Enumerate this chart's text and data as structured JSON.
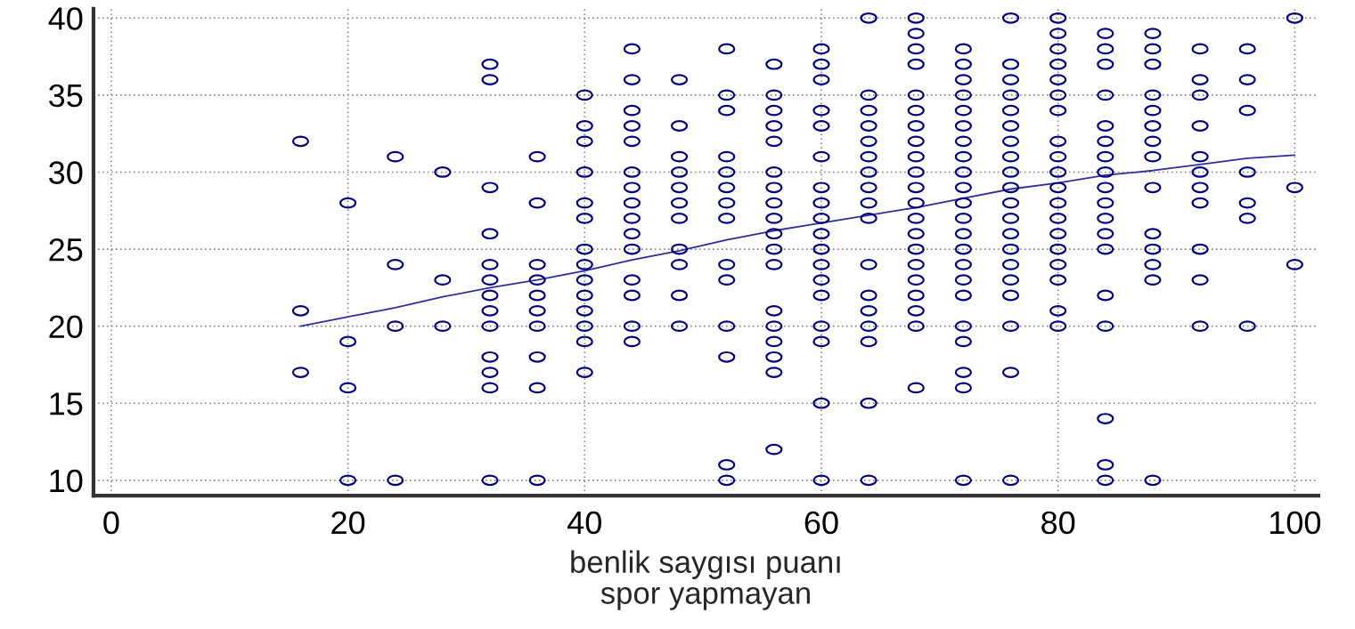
{
  "chart_data": {
    "type": "scatter",
    "xlabel": "benlik saygısı puanı\nspor yapmayan",
    "xlim": [
      -1.5,
      102
    ],
    "ylim": [
      9,
      40.6
    ],
    "xticks": [
      0,
      20,
      40,
      60,
      80,
      100
    ],
    "yticks": [
      10,
      15,
      20,
      25,
      30,
      35,
      40
    ],
    "grid": true,
    "series": [
      {
        "marker": "circle",
        "color": "#000080",
        "x": [
          16,
          16,
          16,
          20,
          20,
          20,
          20,
          24,
          24,
          24,
          24,
          28,
          28,
          28,
          32,
          32,
          32,
          32,
          32,
          32,
          32,
          32,
          32,
          32,
          32,
          32,
          32,
          36,
          36,
          36,
          36,
          36,
          36,
          36,
          36,
          36,
          36,
          40,
          40,
          40,
          40,
          40,
          40,
          40,
          40,
          40,
          40,
          40,
          40,
          40,
          40,
          44,
          44,
          44,
          44,
          44,
          44,
          44,
          44,
          44,
          44,
          44,
          44,
          44,
          44,
          44,
          48,
          48,
          48,
          48,
          48,
          48,
          48,
          48,
          48,
          48,
          48,
          52,
          52,
          52,
          52,
          52,
          52,
          52,
          52,
          52,
          52,
          52,
          52,
          52,
          52,
          56,
          56,
          56,
          56,
          56,
          56,
          56,
          56,
          56,
          56,
          56,
          56,
          56,
          56,
          56,
          56,
          56,
          56,
          60,
          60,
          60,
          60,
          60,
          60,
          60,
          60,
          60,
          60,
          60,
          60,
          60,
          60,
          60,
          60,
          60,
          60,
          64,
          64,
          64,
          64,
          64,
          64,
          64,
          64,
          64,
          64,
          64,
          64,
          64,
          64,
          64,
          64,
          64,
          68,
          68,
          68,
          68,
          68,
          68,
          68,
          68,
          68,
          68,
          68,
          68,
          68,
          68,
          68,
          68,
          68,
          68,
          68,
          68,
          68,
          72,
          72,
          72,
          72,
          72,
          72,
          72,
          72,
          72,
          72,
          72,
          72,
          72,
          72,
          72,
          72,
          72,
          72,
          72,
          72,
          72,
          72,
          76,
          76,
          76,
          76,
          76,
          76,
          76,
          76,
          76,
          76,
          76,
          76,
          76,
          76,
          76,
          76,
          76,
          76,
          76,
          76,
          80,
          80,
          80,
          80,
          80,
          80,
          80,
          80,
          80,
          80,
          80,
          80,
          80,
          80,
          80,
          80,
          80,
          80,
          80,
          84,
          84,
          84,
          84,
          84,
          84,
          84,
          84,
          84,
          84,
          84,
          84,
          84,
          84,
          84,
          84,
          84,
          84,
          88,
          88,
          88,
          88,
          88,
          88,
          88,
          88,
          88,
          88,
          88,
          88,
          88,
          88,
          92,
          92,
          92,
          92,
          92,
          92,
          92,
          92,
          92,
          92,
          92,
          96,
          96,
          96,
          96,
          96,
          96,
          96,
          100,
          100,
          100
        ],
        "values": [
          32,
          21,
          17,
          28,
          19,
          16,
          10,
          31,
          24,
          20,
          10,
          30,
          23,
          20,
          37,
          36,
          29,
          26,
          24,
          23,
          22,
          21,
          20,
          18,
          17,
          16,
          10,
          31,
          28,
          24,
          23,
          22,
          21,
          20,
          18,
          16,
          10,
          35,
          33,
          32,
          30,
          28,
          27,
          25,
          24,
          23,
          22,
          21,
          20,
          19,
          17,
          38,
          36,
          34,
          33,
          32,
          30,
          29,
          28,
          27,
          26,
          25,
          23,
          22,
          20,
          19,
          36,
          33,
          31,
          30,
          29,
          28,
          27,
          25,
          24,
          22,
          20,
          38,
          35,
          34,
          31,
          30,
          29,
          28,
          27,
          24,
          23,
          20,
          18,
          11,
          10,
          37,
          35,
          34,
          33,
          32,
          30,
          29,
          28,
          27,
          26,
          25,
          24,
          21,
          20,
          19,
          18,
          17,
          12,
          38,
          37,
          36,
          34,
          33,
          31,
          29,
          28,
          27,
          26,
          25,
          24,
          23,
          22,
          20,
          19,
          15,
          10,
          40,
          35,
          34,
          33,
          32,
          31,
          30,
          29,
          28,
          27,
          24,
          22,
          21,
          20,
          19,
          15,
          10,
          40,
          39,
          38,
          37,
          35,
          34,
          33,
          32,
          31,
          30,
          29,
          28,
          27,
          26,
          25,
          24,
          23,
          22,
          21,
          20,
          16,
          38,
          37,
          36,
          35,
          34,
          33,
          32,
          31,
          30,
          29,
          28,
          27,
          26,
          25,
          24,
          23,
          22,
          20,
          19,
          17,
          16,
          10,
          40,
          37,
          36,
          35,
          34,
          33,
          32,
          31,
          30,
          29,
          28,
          27,
          26,
          25,
          24,
          23,
          22,
          20,
          17,
          10,
          40,
          39,
          38,
          37,
          36,
          35,
          34,
          32,
          31,
          30,
          29,
          28,
          27,
          26,
          25,
          24,
          23,
          21,
          20,
          39,
          38,
          37,
          35,
          33,
          32,
          31,
          30,
          29,
          28,
          27,
          26,
          25,
          22,
          20,
          14,
          11,
          10,
          39,
          38,
          37,
          35,
          34,
          33,
          32,
          31,
          29,
          26,
          25,
          24,
          23,
          10,
          38,
          36,
          35,
          33,
          31,
          30,
          29,
          28,
          25,
          23,
          20,
          38,
          36,
          34,
          30,
          28,
          27,
          20,
          40,
          29,
          24
        ]
      },
      {
        "type": "line",
        "color": "#2e2e9e",
        "x": [
          16,
          20,
          24,
          28,
          32,
          36,
          40,
          44,
          48,
          52,
          56,
          60,
          64,
          68,
          72,
          76,
          80,
          84,
          88,
          92,
          96,
          100
        ],
        "values": [
          20.0,
          20.6,
          21.2,
          21.9,
          22.5,
          23.0,
          23.6,
          24.3,
          24.9,
          25.6,
          26.2,
          26.7,
          27.2,
          27.7,
          28.3,
          28.9,
          29.3,
          29.8,
          30.1,
          30.5,
          30.9,
          31.1
        ]
      }
    ]
  }
}
